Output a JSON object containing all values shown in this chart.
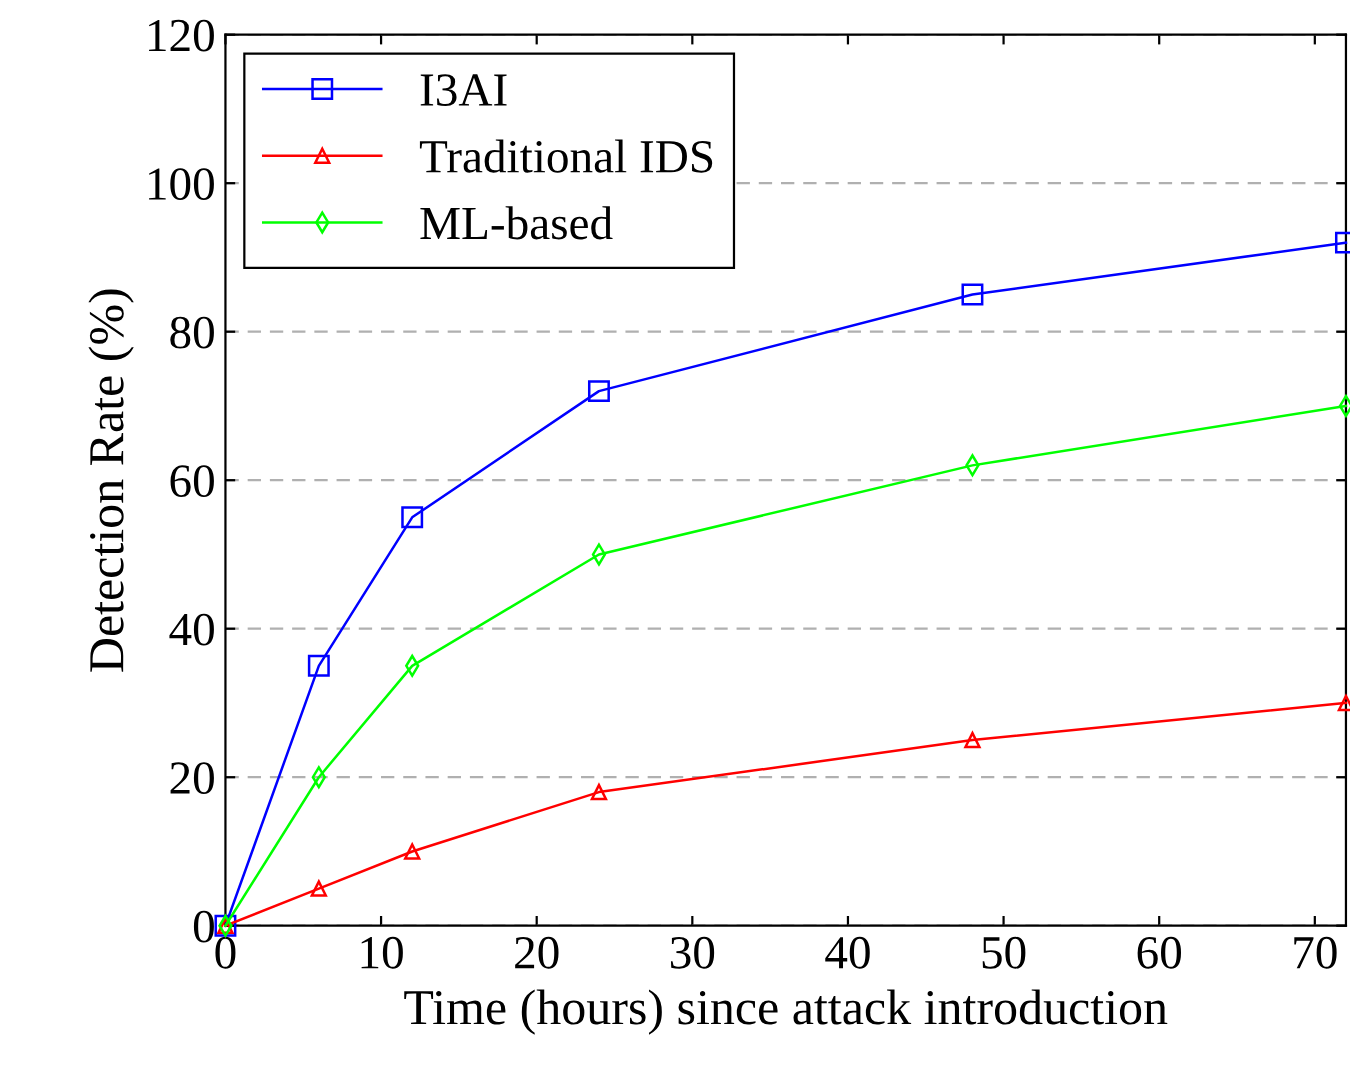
{
  "chart_data": {
    "type": "line",
    "xlabel": "Time (hours) since attack introduction",
    "ylabel": "Detection Rate (%)",
    "x": [
      0,
      6,
      12,
      24,
      48,
      72
    ],
    "series": [
      {
        "name": "I3AI",
        "color": "#0000ff",
        "marker": "square",
        "values": [
          0,
          35,
          55,
          72,
          85,
          92
        ]
      },
      {
        "name": "Traditional IDS",
        "color": "#ff0000",
        "marker": "triangle",
        "values": [
          0,
          5,
          10,
          18,
          25,
          30
        ]
      },
      {
        "name": "ML-based",
        "color": "#00ff00",
        "marker": "diamond",
        "values": [
          0,
          20,
          35,
          50,
          62,
          70
        ]
      }
    ],
    "xlim": [
      0,
      72
    ],
    "ylim": [
      0,
      120
    ],
    "xticks": [
      0,
      10,
      20,
      30,
      40,
      50,
      60,
      70
    ],
    "yticks": [
      0,
      20,
      40,
      60,
      80,
      100,
      120
    ],
    "grid": "y",
    "legend": "top left",
    "line_style": "solid"
  }
}
